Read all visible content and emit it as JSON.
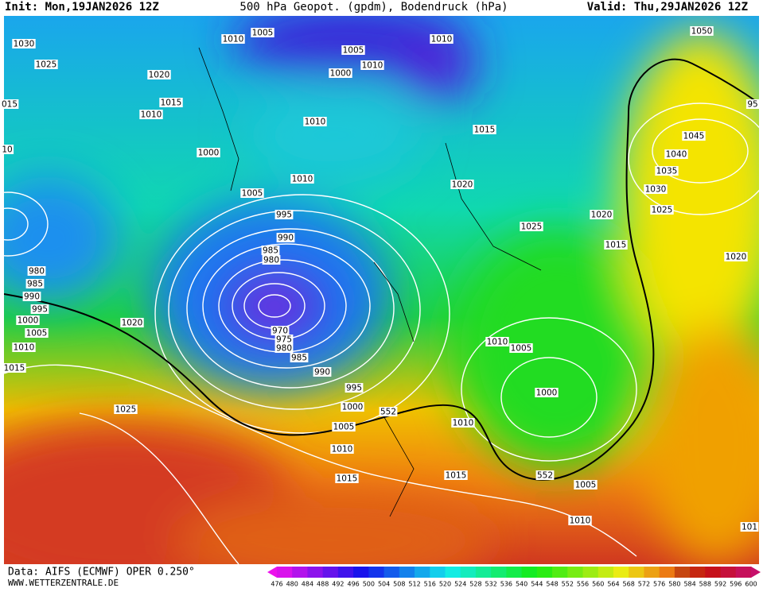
{
  "header": {
    "init": "Init: Mon,19JAN2026 12Z",
    "title": "500 hPa Geopot. (gpdm), Bodendruck (hPa)",
    "valid": "Valid: Thu,29JAN2026 12Z"
  },
  "footer": {
    "source": "Data: AIFS (ECMWF) OPER 0.250°",
    "site": "WWW.WETTERZENTRALE.DE"
  },
  "colorbar": {
    "labels": [
      476,
      480,
      484,
      488,
      492,
      496,
      500,
      504,
      508,
      512,
      516,
      520,
      524,
      528,
      532,
      536,
      540,
      544,
      548,
      552,
      556,
      560,
      564,
      568,
      572,
      576,
      580,
      584,
      588,
      592,
      596,
      600
    ]
  },
  "isobar_labels": [
    "1030",
    "1025",
    "1020",
    "1015",
    "1010",
    "1010",
    "1005",
    "1005",
    "1010",
    "1000",
    "1010",
    "1050",
    "1010",
    "1000",
    "1010",
    "1005",
    "1015",
    "1020",
    "995",
    "990",
    "985",
    "980",
    "1025",
    "1020",
    "1015",
    "1045",
    "1040",
    "1035",
    "1030",
    "1025",
    "1020",
    "980",
    "985",
    "990",
    "995",
    "1000",
    "1005",
    "1010",
    "1015",
    "1020",
    "970",
    "975",
    "980",
    "985",
    "990",
    "995",
    "1000",
    "1005",
    "1010",
    "1015",
    "1010",
    "1005",
    "1000",
    "1010",
    "1015",
    "1005",
    "1010",
    "1025",
    "552",
    "552",
    "015",
    "10",
    "95",
    "101"
  ]
}
